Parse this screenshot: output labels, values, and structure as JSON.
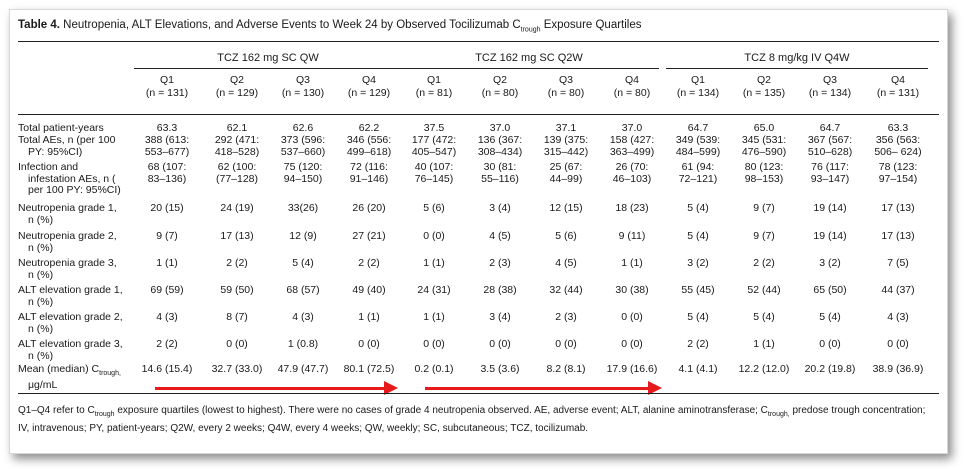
{
  "table": {
    "title_label": "Table 4.",
    "title_text_pre": "Neutropenia, ALT Elevations, and Adverse Events to Week 24 by Observed Tocilizumab C",
    "title_sub": "trough",
    "title_text_post": " Exposure Quartiles",
    "groups": [
      "TCZ 162 mg SC QW",
      "TCZ 162 mg SC Q2W",
      "TCZ 8 mg/kg IV Q4W"
    ],
    "columns": [
      {
        "q": "Q1",
        "n": "(n = 131)"
      },
      {
        "q": "Q2",
        "n": "(n = 129)"
      },
      {
        "q": "Q3",
        "n": "(n = 130)"
      },
      {
        "q": "Q4",
        "n": "(n = 129)"
      },
      {
        "q": "Q1",
        "n": "(n = 81)"
      },
      {
        "q": "Q2",
        "n": "(n = 80)"
      },
      {
        "q": "Q3",
        "n": "(n = 80)"
      },
      {
        "q": "Q4",
        "n": "(n = 80)"
      },
      {
        "q": "Q1",
        "n": "(n = 134)"
      },
      {
        "q": "Q2",
        "n": "(n = 135)"
      },
      {
        "q": "Q3",
        "n": "(n = 134)"
      },
      {
        "q": "Q4",
        "n": "(n = 131)"
      }
    ],
    "rows": [
      {
        "label": [
          "Total patient-years"
        ],
        "cells": [
          [
            "63.3"
          ],
          [
            "62.1"
          ],
          [
            "62.6"
          ],
          [
            "62.2"
          ],
          [
            "37.5"
          ],
          [
            "37.0"
          ],
          [
            "37.1"
          ],
          [
            "37.0"
          ],
          [
            "64.7"
          ],
          [
            "65.0"
          ],
          [
            "64.7"
          ],
          [
            "63.3"
          ]
        ]
      },
      {
        "label": [
          "Total AEs, n (per 100",
          "PY: 95%CI)"
        ],
        "cells": [
          [
            "388 (613:",
            "553–677)"
          ],
          [
            "292 (471:",
            "418–528)"
          ],
          [
            "373 (596:",
            "537–660)"
          ],
          [
            "346 (556:",
            "499–618)"
          ],
          [
            "177 (472:",
            "405–547)"
          ],
          [
            "136 (367:",
            "308–434)"
          ],
          [
            "139 (375:",
            "315–442)"
          ],
          [
            "158 (427:",
            "363–499)"
          ],
          [
            "349 (539:",
            "484–599)"
          ],
          [
            "345 (531:",
            "476–590)"
          ],
          [
            "367 (567:",
            "510–628)"
          ],
          [
            "356 (563:",
            "506– 624)"
          ]
        ]
      },
      {
        "label": [
          "Infection and",
          "infestation AEs, n (",
          "per 100 PY: 95%CI)"
        ],
        "cells": [
          [
            "68 (107:",
            "83–136)"
          ],
          [
            "62 (100:",
            "(77–128)"
          ],
          [
            "75 (120:",
            "94–150)"
          ],
          [
            "72 (116:",
            "91–146)"
          ],
          [
            "40 (107:",
            "76–145)"
          ],
          [
            "30 (81:",
            "55–116)"
          ],
          [
            "25 (67:",
            "44–99)"
          ],
          [
            "26 (70:",
            "46–103)"
          ],
          [
            "61 (94:",
            "72–121)"
          ],
          [
            "80 (123:",
            "98–153)"
          ],
          [
            "76 (117:",
            "93–147)"
          ],
          [
            "78 (123:",
            "97–154)"
          ]
        ]
      },
      {
        "label": [
          "Neutropenia grade 1,",
          "n (%)"
        ],
        "cells": [
          [
            "20 (15)"
          ],
          [
            "24 (19)"
          ],
          [
            "33(26)"
          ],
          [
            "26 (20)"
          ],
          [
            "5 (6)"
          ],
          [
            "3 (4)"
          ],
          [
            "12 (15)"
          ],
          [
            "18 (23)"
          ],
          [
            "5 (4)"
          ],
          [
            "9 (7)"
          ],
          [
            "19 (14)"
          ],
          [
            "17 (13)"
          ]
        ]
      },
      {
        "label": [
          "Neutropenia grade 2,",
          "n (%)"
        ],
        "cells": [
          [
            "9 (7)"
          ],
          [
            "17 (13)"
          ],
          [
            "12 (9)"
          ],
          [
            "27 (21)"
          ],
          [
            "0 (0)"
          ],
          [
            "4 (5)"
          ],
          [
            "5 (6)"
          ],
          [
            "9 (11)"
          ],
          [
            "5 (4)"
          ],
          [
            "9 (7)"
          ],
          [
            "19 (14)"
          ],
          [
            "17 (13)"
          ]
        ]
      },
      {
        "label": [
          "Neutropenia grade 3,",
          "n (%)"
        ],
        "cells": [
          [
            "1 (1)"
          ],
          [
            "2 (2)"
          ],
          [
            "5 (4)"
          ],
          [
            "2 (2)"
          ],
          [
            "1 (1)"
          ],
          [
            "2 (3)"
          ],
          [
            "4 (5)"
          ],
          [
            "1 (1)"
          ],
          [
            "3 (2)"
          ],
          [
            "2 (2)"
          ],
          [
            "3 (2)"
          ],
          [
            "7 (5)"
          ]
        ]
      },
      {
        "label": [
          "ALT elevation grade 1,",
          "n (%)"
        ],
        "cells": [
          [
            "69 (59)"
          ],
          [
            "59 (50)"
          ],
          [
            "68 (57)"
          ],
          [
            "49 (40)"
          ],
          [
            "24 (31)"
          ],
          [
            "28 (38)"
          ],
          [
            "32 (44)"
          ],
          [
            "30 (38)"
          ],
          [
            "55 (45)"
          ],
          [
            "52 (44)"
          ],
          [
            "65 (50)"
          ],
          [
            "44 (37)"
          ]
        ]
      },
      {
        "label": [
          "ALT elevation grade 2,",
          "n (%)"
        ],
        "cells": [
          [
            "4 (3)"
          ],
          [
            "8 (7)"
          ],
          [
            "4 (3)"
          ],
          [
            "1 (1)"
          ],
          [
            "1 (1)"
          ],
          [
            "3 (4)"
          ],
          [
            "2 (3)"
          ],
          [
            "0 (0)"
          ],
          [
            "5 (4)"
          ],
          [
            "5 (4)"
          ],
          [
            "5 (4)"
          ],
          [
            "4 (3)"
          ]
        ]
      },
      {
        "label": [
          "ALT elevation grade 3,",
          "n (%)"
        ],
        "cells": [
          [
            "2 (2)"
          ],
          [
            "0 (0)"
          ],
          [
            "1 (0.8)"
          ],
          [
            "0 (0)"
          ],
          [
            "0 (0)"
          ],
          [
            "0 (0)"
          ],
          [
            "0 (0)"
          ],
          [
            "0 (0)"
          ],
          [
            "2 (2)"
          ],
          [
            "1 (1)"
          ],
          [
            "0 (0)"
          ],
          [
            "0 (0)"
          ]
        ]
      },
      {
        "label": [
          "Mean (median) C",
          "μg/mL"
        ],
        "label_sub": "trough,",
        "cells": [
          [
            "14.6 (15.4)"
          ],
          [
            "32.7 (33.0)"
          ],
          [
            "47.9 (47.7)"
          ],
          [
            "80.1 (72.5)"
          ],
          [
            "0.2 (0.1)"
          ],
          [
            "3.5 (3.6)"
          ],
          [
            "8.2 (8.1)"
          ],
          [
            "17.9 (16.6)"
          ],
          [
            "4.1 (4.1)"
          ],
          [
            "12.2 (12.0)"
          ],
          [
            "20.2 (19.8)"
          ],
          [
            "38.9 (36.9)"
          ]
        ]
      }
    ],
    "footnote": {
      "pre": "Q1–Q4 refer to C",
      "sub1": "trough",
      "mid": " exposure quartiles (lowest to highest). There were no cases of grade 4 neutropenia observed. AE, adverse event; ALT, alanine aminotransferase; C",
      "sub2": "trough,",
      "post": " predose trough concentration; IV, intravenous; PY, patient-years; Q2W, every 2 weeks; Q4W, every 4 weeks; QW, weekly; SC, subcutaneous; TCZ, tocilizumab."
    },
    "arrow_color": "#e8191a"
  }
}
